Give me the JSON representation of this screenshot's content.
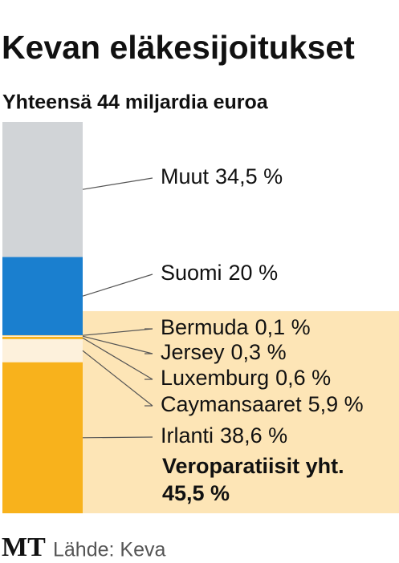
{
  "chart_data": {
    "type": "stacked-bar",
    "title": "Kevan eläkesijoitukset",
    "subtitle": "Yhteensä 44 miljardia euroa",
    "series": [
      {
        "name": "Irlanti",
        "color": "#f8b21c",
        "values": [
          38.6
        ],
        "value_labels": [
          "38,6 %"
        ]
      },
      {
        "name": "Caymansaaret",
        "color": "#fdf1dc",
        "values": [
          5.9
        ],
        "value_labels": [
          "5,9 %"
        ]
      },
      {
        "name": "Luxemburg",
        "color": "#f8b21c",
        "values": [
          0.6
        ],
        "value_labels": [
          "0,6 %"
        ]
      },
      {
        "name": "Jersey",
        "color": "#fdf1dc",
        "values": [
          0.3
        ],
        "value_labels": [
          "0,3 %"
        ]
      },
      {
        "name": "Bermuda",
        "color": "#f8b21c",
        "values": [
          0.1
        ],
        "value_labels": [
          "0,1 %"
        ]
      },
      {
        "name": "Suomi",
        "color": "#1a7fcf",
        "values": [
          20
        ],
        "value_labels": [
          "20 %"
        ]
      },
      {
        "name": "Muut",
        "color": "#d1d4d7",
        "values": [
          34.5
        ],
        "value_labels": [
          "34,5 %"
        ]
      }
    ],
    "annotation": {
      "text": "Veroparatiisit yht.",
      "value": 45.5,
      "label": "45,5 %",
      "color": "#fde5b6"
    },
    "ylim": [
      0,
      100
    ]
  },
  "footer": {
    "logo": "MT",
    "source": "Lähde: Keva"
  }
}
